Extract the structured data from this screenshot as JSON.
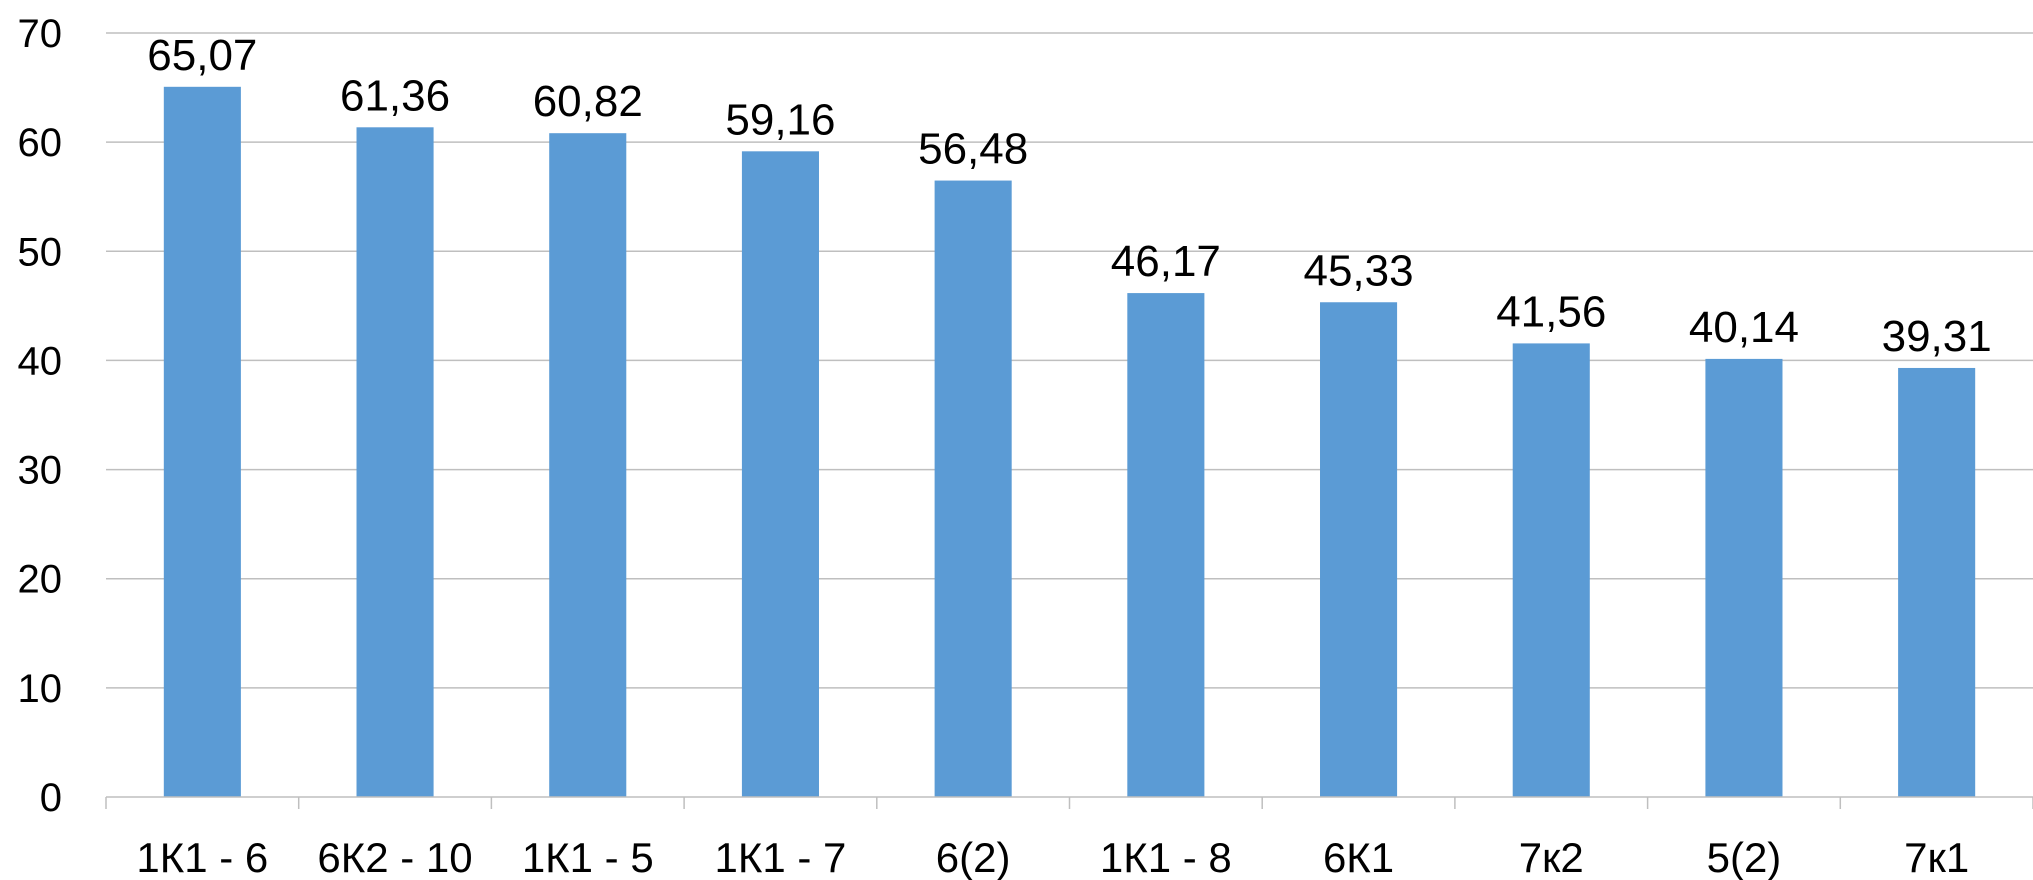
{
  "chart_data": {
    "type": "bar",
    "categories": [
      "1К1 - 6",
      "6К2 - 10",
      "1К1 - 5",
      "1К1 - 7",
      "6(2)",
      "1К1 - 8",
      "6К1",
      "7к2",
      "5(2)",
      "7к1"
    ],
    "values": [
      65.07,
      61.36,
      60.82,
      59.16,
      56.48,
      46.17,
      45.33,
      41.56,
      40.14,
      39.31
    ],
    "value_labels": [
      "65,07",
      "61,36",
      "60,82",
      "59,16",
      "56,48",
      "46,17",
      "45,33",
      "41,56",
      "40,14",
      "39,31"
    ],
    "y_ticks": [
      "0",
      "10",
      "20",
      "30",
      "40",
      "50",
      "60",
      "70"
    ],
    "ylim": [
      0,
      70
    ],
    "grid": true,
    "legend": "none",
    "bar_color": "#5b9bd5",
    "title": "",
    "xlabel": "",
    "ylabel": ""
  }
}
